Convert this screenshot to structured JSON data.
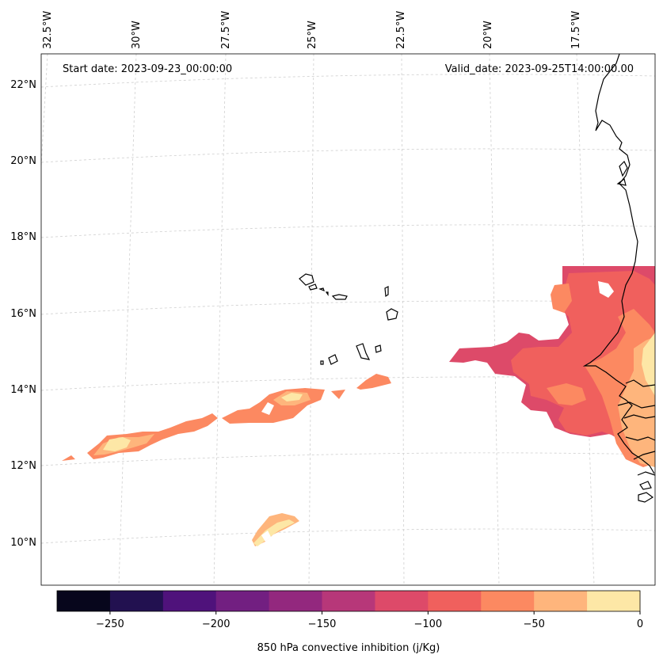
{
  "map": {
    "start_date": "Start date: 2023-09-23_00:00:00",
    "valid_date": "Valid_date: 2023-09-25T14:00:00.00",
    "lon_labels": [
      "32.5°W",
      "30°W",
      "27.5°W",
      "25°W",
      "22.5°W",
      "20°W",
      "17.5°W"
    ],
    "lat_labels": [
      "22°N",
      "20°N",
      "18°N",
      "16°N",
      "14°N",
      "12°N",
      "10°N"
    ]
  },
  "colorbar": {
    "label": "850 hPa convective inhibition (j/Kg)",
    "tick_labels": [
      "−250",
      "−200",
      "−150",
      "−100",
      "−50",
      "0"
    ],
    "colors": [
      "#07061c",
      "#221150",
      "#4f127b",
      "#721f81",
      "#93287e",
      "#b73779",
      "#dd4a69",
      "#f0605d",
      "#fc8961",
      "#feb57c",
      "#fde7a6"
    ]
  },
  "chart_data": {
    "type": "heatmap",
    "title": "",
    "variable": "850 hPa convective inhibition",
    "units": "j/Kg",
    "start_date": "2023-09-23_00:00:00",
    "valid_date": "2023-09-25T14:00:00.00",
    "lon_range": [
      -32.5,
      -15.5
    ],
    "lat_range": [
      9,
      22.5
    ],
    "color_levels": [
      -275,
      -250,
      -225,
      -200,
      -175,
      -150,
      -125,
      -100,
      -75,
      -50,
      -25,
      0
    ],
    "colorbar_ticks": [
      -250,
      -200,
      -150,
      -100,
      -50,
      0
    ],
    "regions": [
      {
        "name": "West African coast (Senegal / Gambia)",
        "min_value": -125,
        "max_value": 0
      },
      {
        "name": "Band near 12-14N, 32-22W",
        "min_value": -100,
        "max_value": 0
      },
      {
        "name": "Patch near 10N, 26W",
        "min_value": -75,
        "max_value": 0
      }
    ]
  }
}
